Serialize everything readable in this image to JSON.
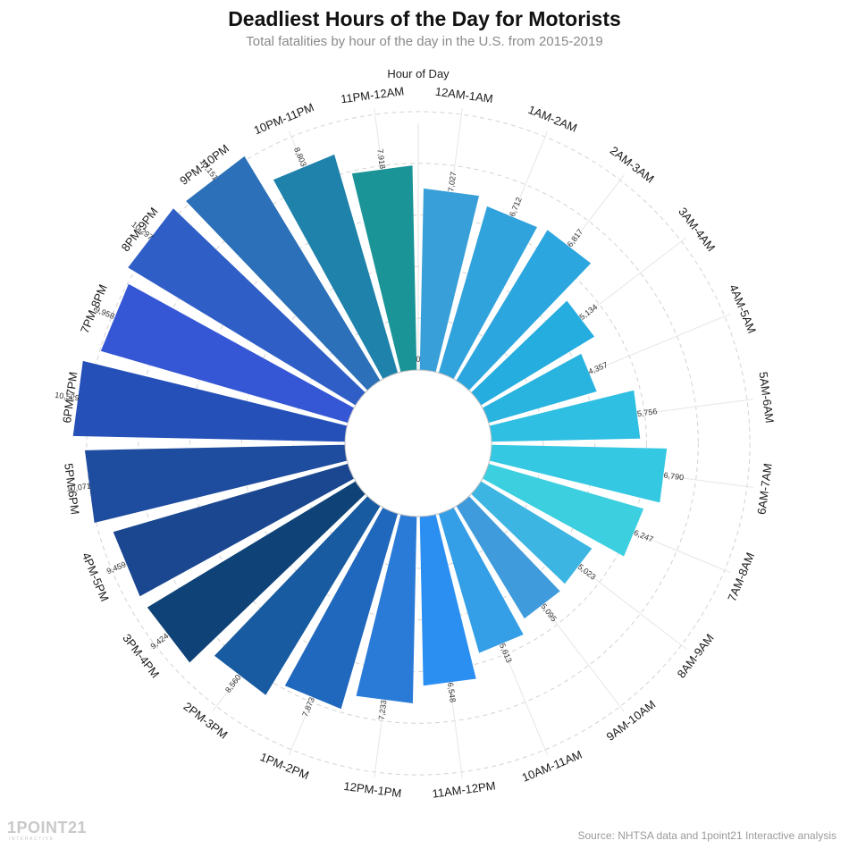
{
  "header": {
    "title": "Deadliest Hours of the Day for Motorists",
    "subtitle": "Total fatalities by hour of the day in the U.S. from 2015-2019"
  },
  "footer": {
    "brand": "1POINT21",
    "brand_sub": "INTERACTIVE",
    "source": "Source: NHTSA data and 1point21 Interactive analysis"
  },
  "chart_data": {
    "type": "bar",
    "polar": true,
    "axis_label": "Hour of Day",
    "zero_label": "0",
    "rmax": 11000,
    "grid": true,
    "categories": [
      "12AM-1AM",
      "1AM-2AM",
      "2AM-3AM",
      "3AM-4AM",
      "4AM-5AM",
      "5AM-6AM",
      "6AM-7AM",
      "7AM-8AM",
      "8AM-9AM",
      "9AM-10AM",
      "10AM-11AM",
      "11AM-12PM",
      "12PM-1PM",
      "1PM-2PM",
      "2PM-3PM",
      "3PM-4PM",
      "4PM-5PM",
      "5PM-6PM",
      "6PM-7PM",
      "7PM-8PM",
      "8PM-9PM",
      "9PM-10PM",
      "10PM-11PM",
      "11PM-12AM"
    ],
    "values": [
      7027,
      6712,
      6817,
      5134,
      4357,
      5756,
      6790,
      6247,
      5023,
      5095,
      5613,
      6548,
      7233,
      7873,
      8560,
      9424,
      9459,
      10071,
      10529,
      9958,
      10297,
      10151,
      8803,
      7918
    ],
    "value_labels": [
      "7,027",
      "6,712",
      "6,817",
      "5,134",
      "4,357",
      "5,756",
      "6,790",
      "6,247",
      "5,023",
      "5,095",
      "5,613",
      "6,548",
      "7,233",
      "7,873",
      "8,560",
      "9,424",
      "9,459",
      "10,071",
      "10,529",
      "9,958",
      "10,297",
      "10,151",
      "8,803",
      "7,918"
    ],
    "colors": [
      "#389fd8",
      "#30a2dc",
      "#2ca6de",
      "#26ade0",
      "#29b4e0",
      "#2fbfe2",
      "#35c8e2",
      "#3ccfe0",
      "#3db5e2",
      "#3f9bdb",
      "#349fe6",
      "#2b8ff2",
      "#2a7bd8",
      "#2068bd",
      "#185ba1",
      "#0f4378",
      "#1a4790",
      "#1e4c9e",
      "#2450b8",
      "#3557d6",
      "#2f5fc6",
      "#2b70b8",
      "#1f82ab",
      "#1a9496"
    ]
  }
}
